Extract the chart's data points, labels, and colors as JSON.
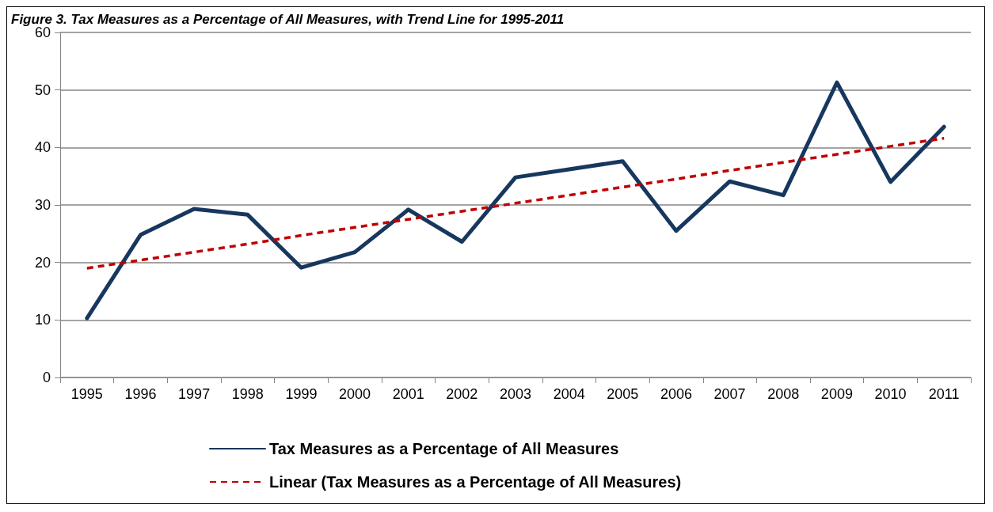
{
  "chart_data": {
    "type": "line",
    "title": "Figure 3. Tax Measures as a Percentage of All Measures, with Trend Line for 1995-2011",
    "categories": [
      "1995",
      "1996",
      "1997",
      "1998",
      "1999",
      "2000",
      "2001",
      "2002",
      "2003",
      "2004",
      "2005",
      "2006",
      "2007",
      "2008",
      "2009",
      "2010",
      "2011"
    ],
    "series": [
      {
        "name": "Tax Measures as a Percentage of All Measures",
        "color": "#17375e",
        "values": [
          10.3,
          24.8,
          29.3,
          28.3,
          19.1,
          21.8,
          29.2,
          23.6,
          34.8,
          36.2,
          37.6,
          25.5,
          34.1,
          31.7,
          51.3,
          34.0,
          43.6
        ]
      },
      {
        "name": "Linear (Tax Measures as a Percentage of All Measures)",
        "type": "line",
        "color": "#c00000",
        "line_style": "dashed",
        "values": [
          19.0,
          20.4,
          21.8,
          23.2,
          24.7,
          26.1,
          27.5,
          28.9,
          30.3,
          31.7,
          33.1,
          34.5,
          36.0,
          37.4,
          38.8,
          40.2,
          41.6
        ]
      }
    ],
    "ylim": [
      0,
      60
    ],
    "yticks": [
      0,
      10,
      20,
      30,
      40,
      50,
      60
    ],
    "grid": "y",
    "legend": "bottom",
    "marker": "none"
  }
}
